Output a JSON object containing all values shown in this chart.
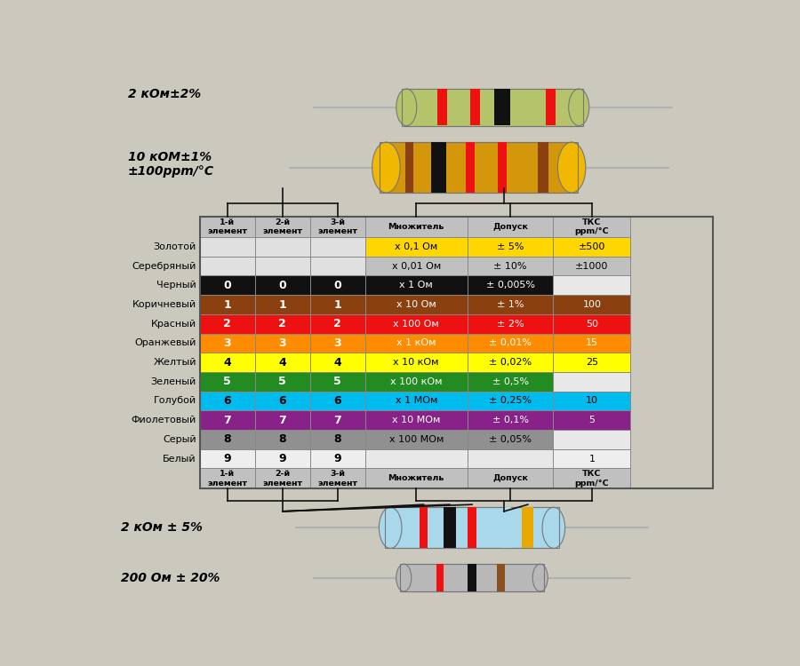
{
  "bg_color": "#cbc8be",
  "table_header_bg": "#b8b8b8",
  "col_headers": [
    "1-й\nэлемент",
    "2-й\nэлемент",
    "3-й\nэлемент",
    "Множитель",
    "Допуск",
    "ТКС\nppm/°C"
  ],
  "row_labels": [
    "Золотой",
    "Серебряный",
    "Черный",
    "Коричневый",
    "Красный",
    "Оранжевый",
    "Желтый",
    "Зеленый",
    "Голубой",
    "Фиолетовый",
    "Серый",
    "Белый"
  ],
  "row_colors": [
    "#FFD700",
    "#C0C0C0",
    "#111111",
    "#8B4010",
    "#EE1111",
    "#FF8C00",
    "#FFFF00",
    "#228B22",
    "#00BBEE",
    "#882288",
    "#909090",
    "#EEEEEE"
  ],
  "row_text_colors": [
    "#000000",
    "#000000",
    "#FFFFFF",
    "#FFFFFF",
    "#FFFFFF",
    "#FFFFFF",
    "#000000",
    "#FFFFFF",
    "#000000",
    "#FFFFFF",
    "#000000",
    "#000000"
  ],
  "digit1": [
    "",
    "",
    "0",
    "1",
    "2",
    "3",
    "4",
    "5",
    "6",
    "7",
    "8",
    "9"
  ],
  "digit2": [
    "",
    "",
    "0",
    "1",
    "2",
    "3",
    "4",
    "5",
    "6",
    "7",
    "8",
    "9"
  ],
  "digit3": [
    "",
    "",
    "0",
    "1",
    "2",
    "3",
    "4",
    "5",
    "6",
    "7",
    "8",
    "9"
  ],
  "multiplier": [
    "х 0,1 Ом",
    "х 0,01 Ом",
    "х 1 Ом",
    "х 10 Ом",
    "х 100 Ом",
    "х 1 кОм",
    "х 10 кОм",
    "х 100 кОм",
    "х 1 МОм",
    "х 10 МОм",
    "х 100 МОм",
    ""
  ],
  "tolerance": [
    "± 5%",
    "± 10%",
    "± 0,005%",
    "± 1%",
    "± 2%",
    "± 0,01%",
    "± 0,02%",
    "± 0,5%",
    "± 0,25%",
    "± 0,1%",
    "± 0,05%",
    ""
  ],
  "tks": [
    "±500",
    "±1000",
    "",
    "100",
    "50",
    "15",
    "25",
    "",
    "10",
    "5",
    "",
    "1"
  ],
  "label_top1": "2 кОм±2%",
  "label_top2": "10 кОМ±1%\n±100ppm/°C",
  "label_bot1": "2 кОм ± 5%",
  "label_bot2": "200 Ом ± 20%"
}
